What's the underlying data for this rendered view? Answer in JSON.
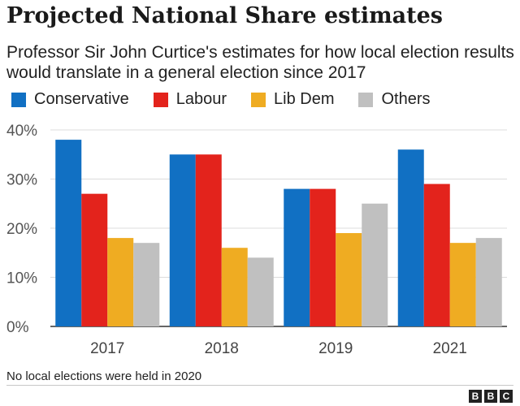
{
  "chart_data": {
    "type": "bar",
    "title": "Projected National Share estimates",
    "subtitle": "Professor Sir John Curtice's estimates for how local election results would translate in a general election since 2017",
    "categories": [
      "2017",
      "2018",
      "2019",
      "2021"
    ],
    "series": [
      {
        "name": "Conservative",
        "color": "#1170c3",
        "values": [
          38,
          35,
          28,
          36
        ]
      },
      {
        "name": "Labour",
        "color": "#e3231c",
        "values": [
          27,
          35,
          28,
          29
        ]
      },
      {
        "name": "Lib Dem",
        "color": "#efac22",
        "values": [
          18,
          16,
          19,
          17
        ]
      },
      {
        "name": "Others",
        "color": "#c0c0c0",
        "values": [
          17,
          14,
          25,
          18
        ]
      }
    ],
    "yticks": [
      "0%",
      "10%",
      "20%",
      "30%",
      "40%"
    ],
    "ylim": [
      0,
      40
    ],
    "xlabel": "",
    "ylabel": "",
    "grid": true,
    "legend": "top"
  },
  "footnote": "No local elections were held in 2020",
  "branding": {
    "letters": [
      "B",
      "B",
      "C"
    ]
  }
}
